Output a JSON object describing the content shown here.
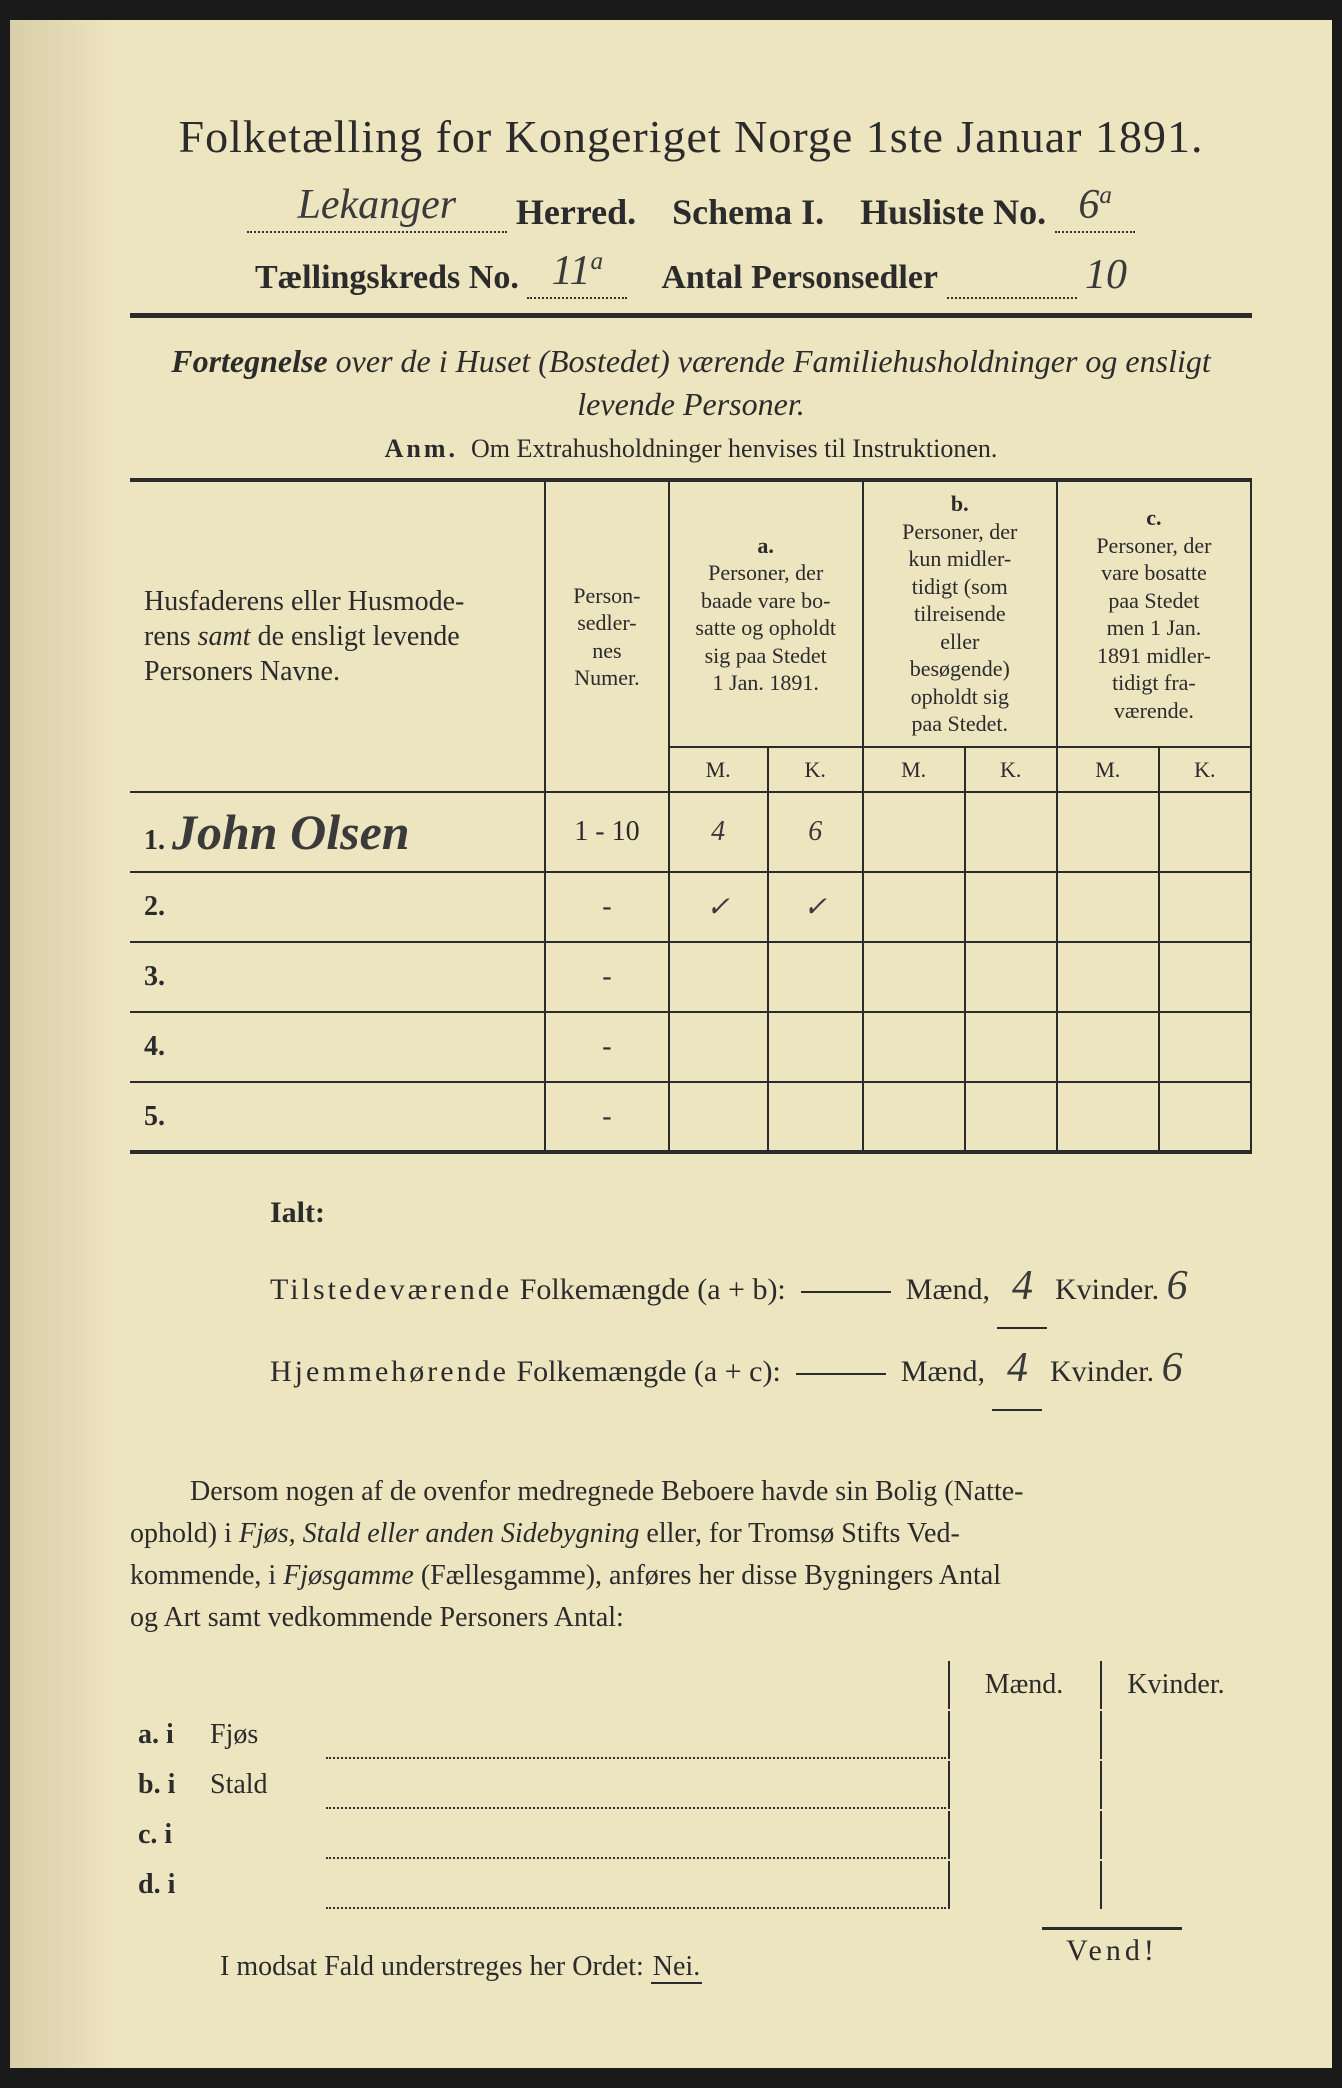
{
  "title": "Folketælling for Kongeriget Norge 1ste Januar 1891.",
  "herred_name": "Lekanger",
  "herred_label": "Herred.",
  "schema_label": "Schema I.",
  "husliste_label": "Husliste No.",
  "husliste_no": "6",
  "husliste_sup": "a",
  "kreds_label": "Tællingskreds No.",
  "kreds_no": "11",
  "kreds_sup": "a",
  "antal_label": "Antal Personsedler",
  "antal_value": "10",
  "fortegnelse": "Fortegnelse over de i Huset (Bostedet) værende Familiehusholdninger og ensligt levende Personer.",
  "anm_label": "Anm.",
  "anm_text": "Om Extrahusholdninger henvises til Instruktionen.",
  "headers": {
    "name": "Husfaderens eller Husmoderens samt de ensligt levende Personers Navne.",
    "sedler": "Person-sedler-nes Numer.",
    "a_label": "a.",
    "a_text": "Personer, der baade vare bosatte og opholdt sig paa Stedet 1 Jan. 1891.",
    "b_label": "b.",
    "b_text": "Personer, der kun midlertidigt (som tilreisende eller besøgende) opholdt sig paa Stedet.",
    "c_label": "c.",
    "c_text": "Personer, der vare bosatte paa Stedet men 1 Jan. 1891 midlertidigt fraværende.",
    "M": "M.",
    "K": "K."
  },
  "rows": [
    {
      "n": "1.",
      "name": "John Olsen",
      "sedler": "1 - 10",
      "aM": "4",
      "aK": "6",
      "bM": "",
      "bK": "",
      "cM": "",
      "cK": ""
    },
    {
      "n": "2.",
      "name": "",
      "sedler": "-",
      "aM": "✓",
      "aK": "✓",
      "bM": "",
      "bK": "",
      "cM": "",
      "cK": ""
    },
    {
      "n": "3.",
      "name": "",
      "sedler": "-",
      "aM": "",
      "aK": "",
      "bM": "",
      "bK": "",
      "cM": "",
      "cK": ""
    },
    {
      "n": "4.",
      "name": "",
      "sedler": "-",
      "aM": "",
      "aK": "",
      "bM": "",
      "bK": "",
      "cM": "",
      "cK": ""
    },
    {
      "n": "5.",
      "name": "",
      "sedler": "-",
      "aM": "",
      "aK": "",
      "bM": "",
      "bK": "",
      "cM": "",
      "cK": ""
    }
  ],
  "ialt": {
    "title": "Ialt:",
    "line1_label": "Tilstedeværende Folkemængde (a + b):",
    "line2_label": "Hjemmehørende Folkemængde (a + c):",
    "maend": "Mænd,",
    "kvinder": "Kvinder.",
    "v1_m": "4",
    "v1_k": "6",
    "v2_m": "4",
    "v2_k": "6"
  },
  "dersom": "Dersom nogen af de ovenfor medregnede Beboere havde sin Bolig (Natteophold) i Fjøs, Stald eller anden Sidebygning eller, for Tromsø Stifts Vedkommende, i Fjøsgamme (Fællesgamme), anføres her disse Bygningers Antal og Art samt vedkommende Personers Antal:",
  "byg_headers": {
    "maend": "Mænd.",
    "kvinder": "Kvinder."
  },
  "byg_rows": [
    {
      "k": "a. i",
      "label": "Fjøs"
    },
    {
      "k": "b. i",
      "label": "Stald"
    },
    {
      "k": "c. i",
      "label": ""
    },
    {
      "k": "d. i",
      "label": ""
    }
  ],
  "nei_line": "I modsat Fald understreges her Ordet:",
  "nei": "Nei.",
  "vend": "Vend!",
  "colors": {
    "paper": "#ede4c0",
    "paper_shadow": "#d8cea8",
    "ink": "#2b2b2b"
  }
}
